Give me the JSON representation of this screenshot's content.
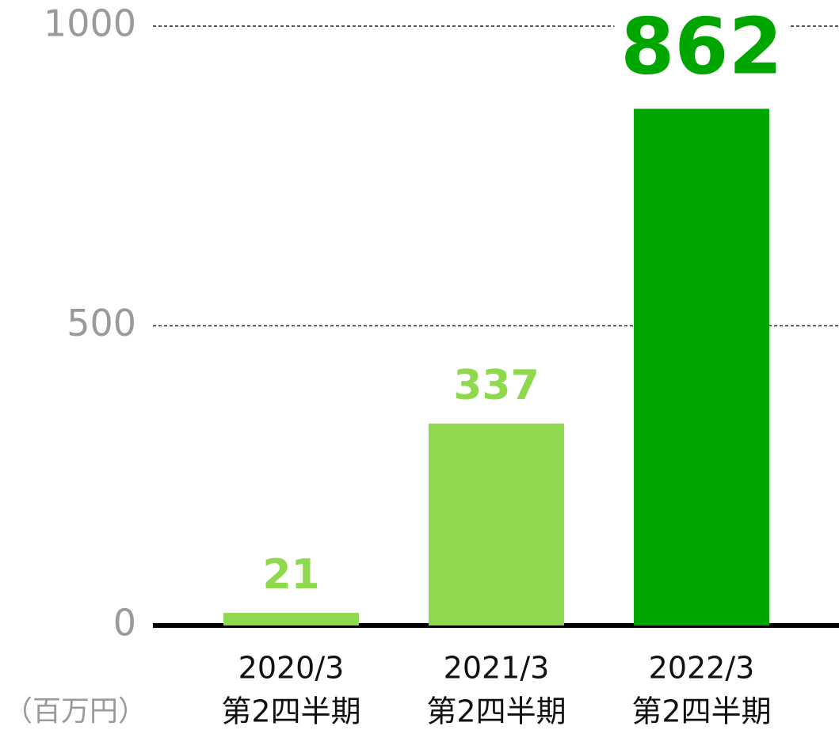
{
  "chart_data": {
    "type": "bar",
    "categories": [
      [
        "2020/3",
        "第2四半期"
      ],
      [
        "2021/3",
        "第2四半期"
      ],
      [
        "2022/3",
        "第2四半期"
      ]
    ],
    "values": [
      21,
      337,
      862
    ],
    "colors": [
      "#8fd94e",
      "#8fd94e",
      "#00a600"
    ],
    "ylim": [
      0,
      1000
    ],
    "yticks": [
      0,
      500,
      1000
    ],
    "grid": true,
    "unit_label": "（百万円）"
  }
}
